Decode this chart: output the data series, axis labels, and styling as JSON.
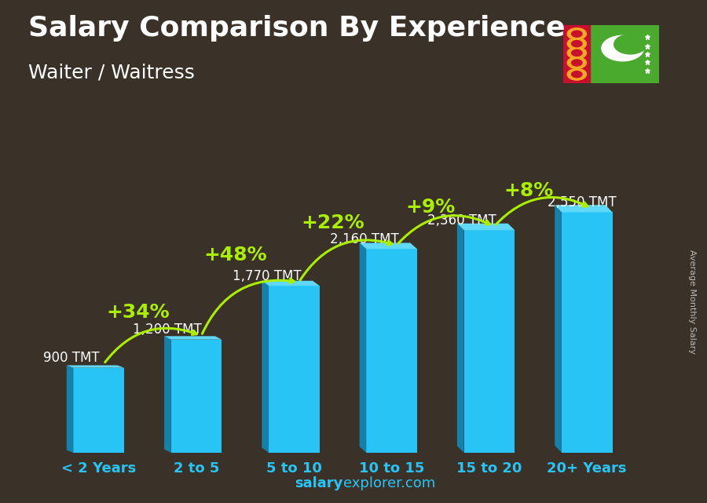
{
  "title": "Salary Comparison By Experience",
  "subtitle": "Waiter / Waitress",
  "categories": [
    "< 2 Years",
    "2 to 5",
    "5 to 10",
    "10 to 15",
    "15 to 20",
    "20+ Years"
  ],
  "values": [
    900,
    1200,
    1770,
    2160,
    2360,
    2550
  ],
  "value_labels": [
    "900 TMT",
    "1,200 TMT",
    "1,770 TMT",
    "2,160 TMT",
    "2,360 TMT",
    "2,550 TMT"
  ],
  "pct_labels": [
    "+34%",
    "+48%",
    "+22%",
    "+9%",
    "+8%"
  ],
  "bar_color_face": "#29c4f6",
  "bar_color_dark": "#1580a8",
  "bar_color_top": "#60d8f8",
  "bg_color": "#3a3228",
  "title_color": "#ffffff",
  "subtitle_color": "#ffffff",
  "value_label_color": "#ffffff",
  "pct_label_color": "#aaee00",
  "xlabel_color": "#29c4f6",
  "footer_salary": "salary",
  "footer_rest": "explorer.com",
  "footer_color": "#29c4f6",
  "ylabel_text": "Average Monthly Salary",
  "ylim": [
    0,
    3200
  ],
  "title_fontsize": 26,
  "subtitle_fontsize": 18,
  "category_fontsize": 13,
  "value_fontsize": 12,
  "pct_fontsize": 18,
  "footer_fontsize": 13
}
